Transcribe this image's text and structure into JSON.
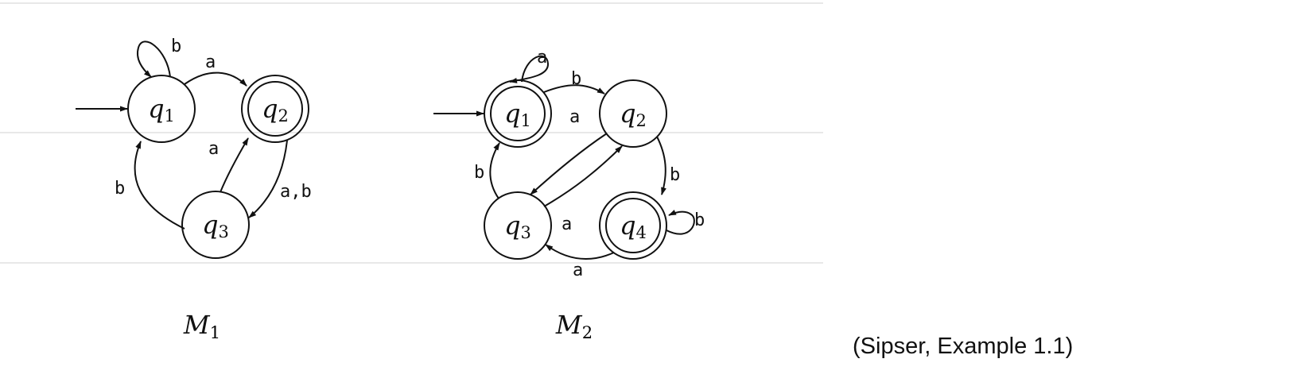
{
  "caption": "(Sipser, Example 1.1)",
  "machines": [
    {
      "id": "m1",
      "name": "M",
      "subscript": "1",
      "states": [
        {
          "id": "q1",
          "name": "q",
          "subscript": "1",
          "accepting": false,
          "start": true
        },
        {
          "id": "q2",
          "name": "q",
          "subscript": "2",
          "accepting": true,
          "start": false
        },
        {
          "id": "q3",
          "name": "q",
          "subscript": "3",
          "accepting": false,
          "start": false
        }
      ],
      "transitions": [
        {
          "from": "q1",
          "to": "q1",
          "label": "b"
        },
        {
          "from": "q1",
          "to": "q2",
          "label": "a"
        },
        {
          "from": "q3",
          "to": "q2",
          "label": "a"
        },
        {
          "from": "q2",
          "to": "q3",
          "label": "a,b"
        },
        {
          "from": "q3",
          "to": "q1",
          "label": "b"
        }
      ]
    },
    {
      "id": "m2",
      "name": "M",
      "subscript": "2",
      "states": [
        {
          "id": "q1",
          "name": "q",
          "subscript": "1",
          "accepting": true,
          "start": true
        },
        {
          "id": "q2",
          "name": "q",
          "subscript": "2",
          "accepting": false,
          "start": false
        },
        {
          "id": "q3",
          "name": "q",
          "subscript": "3",
          "accepting": false,
          "start": false
        },
        {
          "id": "q4",
          "name": "q",
          "subscript": "4",
          "accepting": true,
          "start": false
        }
      ],
      "transitions": [
        {
          "from": "q1",
          "to": "q1",
          "label": "a"
        },
        {
          "from": "q1",
          "to": "q2",
          "label": "b"
        },
        {
          "from": "q2",
          "to": "q3",
          "label": "a"
        },
        {
          "from": "q3",
          "to": "q2",
          "label": "a"
        },
        {
          "from": "q3",
          "to": "q1",
          "label": "b"
        },
        {
          "from": "q2",
          "to": "q4",
          "label": "b"
        },
        {
          "from": "q4",
          "to": "q4",
          "label": "b"
        },
        {
          "from": "q4",
          "to": "q3",
          "label": "a"
        }
      ]
    }
  ]
}
